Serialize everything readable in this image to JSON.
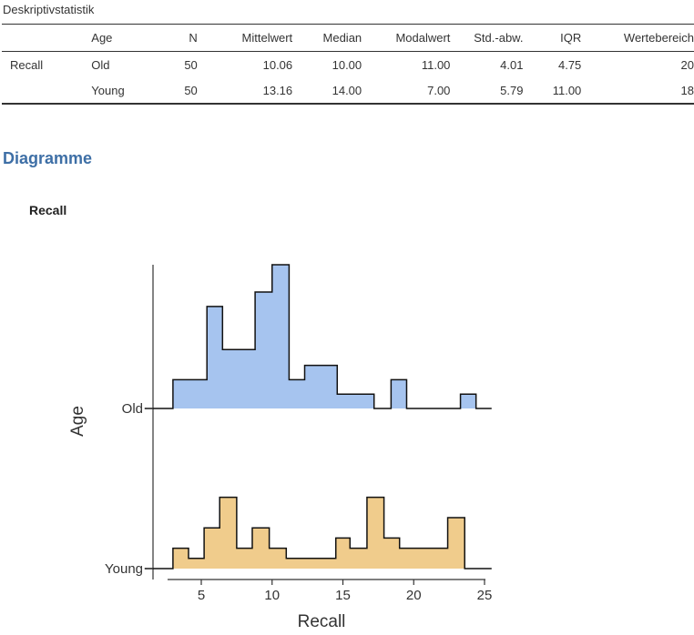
{
  "table": {
    "title": "Deskriptivstatistik",
    "headers": [
      "",
      "Age",
      "N",
      "Mittelwert",
      "Median",
      "Modalwert",
      "Std.-abw.",
      "IQR",
      "Wertebereich"
    ],
    "rows": [
      [
        "Recall",
        "Old",
        "50",
        "10.06",
        "10.00",
        "11.00",
        "4.01",
        "4.75",
        "20"
      ],
      [
        "",
        "Young",
        "50",
        "13.16",
        "14.00",
        "7.00",
        "5.79",
        "11.00",
        "18"
      ]
    ]
  },
  "section_heading": "Diagramme",
  "plot_title": "Recall",
  "colors": {
    "old_fill": "#a6c4ef",
    "young_fill": "#f0cc8c",
    "heading": "#3e6fa6"
  },
  "chart_data": {
    "type": "area",
    "xlabel": "Recall",
    "ylabel": "Age",
    "xlim": [
      2,
      25.5
    ],
    "xticks": [
      5,
      10,
      15,
      20,
      25
    ],
    "grid": false,
    "series": [
      {
        "name": "Old",
        "x": [
          1,
          3,
          5.4,
          6.5,
          8.8,
          10,
          11.2,
          12.3,
          14.6,
          17.2,
          18.4,
          19.5,
          22.2,
          23.3,
          24.4,
          25.5
        ],
        "values": [
          0,
          0.2,
          0.71,
          0.41,
          0.81,
          1.0,
          0.2,
          0.3,
          0.1,
          0,
          0.2,
          0,
          0,
          0.1,
          0,
          0
        ]
      },
      {
        "name": "Young",
        "x": [
          1,
          3,
          4.1,
          5.2,
          6.3,
          7.5,
          8.6,
          9.8,
          11,
          14.5,
          15.5,
          16.7,
          17.9,
          19,
          22.4,
          23.6,
          24.8
        ],
        "values": [
          0,
          0.2,
          0.1,
          0.4,
          0.7,
          0.2,
          0.4,
          0.2,
          0.1,
          0.3,
          0.2,
          0.7,
          0.3,
          0.2,
          0.5,
          0,
          0
        ]
      }
    ]
  }
}
